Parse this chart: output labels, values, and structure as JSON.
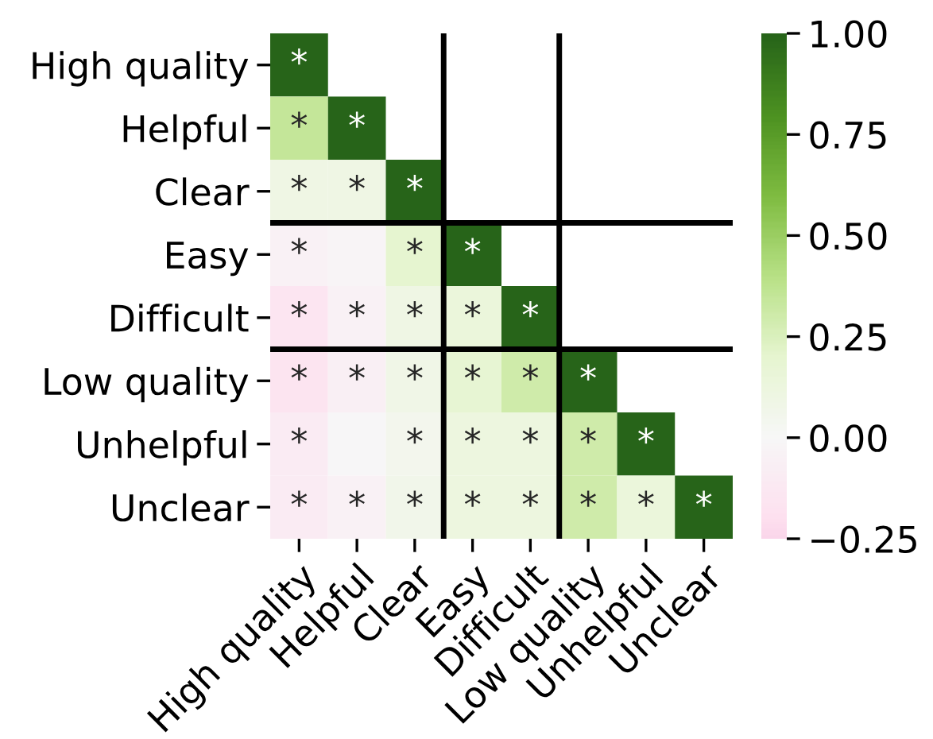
{
  "chart_data": {
    "type": "heatmap",
    "categories": [
      "High quality",
      "Helpful",
      "Clear",
      "Easy",
      "Difficult",
      "Low quality",
      "Unhelpful",
      "Unclear"
    ],
    "y_categories": [
      "High quality",
      "Helpful",
      "Clear",
      "Easy",
      "Difficult",
      "Low quality",
      "Unhelpful",
      "Unclear"
    ],
    "cells": [
      [
        1,
        null,
        null,
        null,
        null,
        null,
        null,
        null
      ],
      [
        0.35,
        1,
        null,
        null,
        null,
        null,
        null,
        null
      ],
      [
        0.1,
        0.1,
        1,
        null,
        null,
        null,
        null,
        null
      ],
      [
        -0.05,
        -0.03,
        0.2,
        1,
        null,
        null,
        null,
        null
      ],
      [
        -0.15,
        -0.05,
        0.1,
        0.15,
        1,
        null,
        null,
        null
      ],
      [
        -0.17,
        -0.06,
        0.08,
        0.18,
        0.3,
        1,
        null,
        null
      ],
      [
        -0.1,
        -0.01,
        0.05,
        0.12,
        0.12,
        0.3,
        1,
        null
      ],
      [
        -0.1,
        -0.05,
        0.07,
        0.12,
        0.12,
        0.3,
        0.15,
        1
      ]
    ],
    "cell_labels": [
      [
        "*",
        null,
        null,
        null,
        null,
        null,
        null,
        null
      ],
      [
        "*",
        "*",
        null,
        null,
        null,
        null,
        null,
        null
      ],
      [
        "*",
        "*",
        "*",
        null,
        null,
        null,
        null,
        null
      ],
      [
        "*",
        null,
        "*",
        "*",
        null,
        null,
        null,
        null
      ],
      [
        "*",
        "*",
        "*",
        "*",
        "*",
        null,
        null,
        null
      ],
      [
        "*",
        "*",
        "*",
        "*",
        "*",
        "*",
        null,
        null
      ],
      [
        "*",
        null,
        "*",
        "*",
        "*",
        "*",
        "*",
        null
      ],
      [
        "*",
        "*",
        "*",
        "*",
        "*",
        "*",
        "*",
        "*"
      ]
    ],
    "clim": [
      -0.25,
      1
    ],
    "cticks": [
      {
        "value": -0.25,
        "label": "−0.25"
      },
      {
        "value": 0,
        "label": "0.00"
      },
      {
        "value": 0.25,
        "label": "0.25"
      },
      {
        "value": 0.5,
        "label": "0.50"
      },
      {
        "value": 0.75,
        "label": "0.75"
      },
      {
        "value": 1,
        "label": "1.00"
      }
    ]
  }
}
